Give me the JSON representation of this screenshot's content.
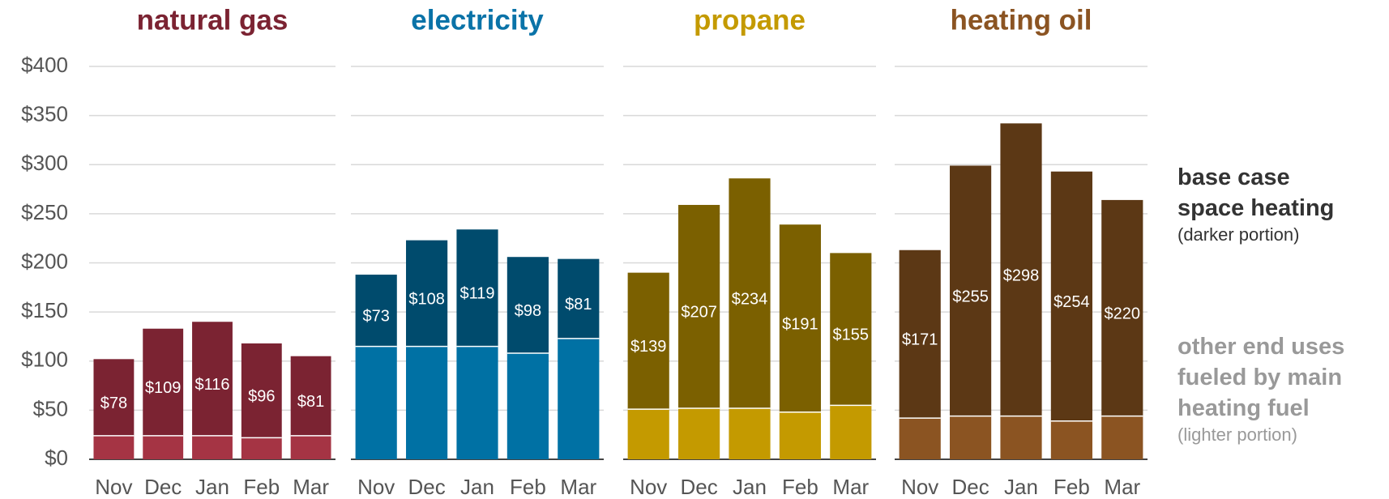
{
  "chart_data": {
    "type": "bar",
    "stacked": true,
    "grid": true,
    "ylim": [
      0,
      400
    ],
    "yticks": [
      {
        "value": 0,
        "label": "$0"
      },
      {
        "value": 50,
        "label": "$50"
      },
      {
        "value": 100,
        "label": "$100"
      },
      {
        "value": 150,
        "label": "$150"
      },
      {
        "value": 200,
        "label": "$200"
      },
      {
        "value": 250,
        "label": "$250"
      },
      {
        "value": 300,
        "label": "$300"
      },
      {
        "value": 350,
        "label": "$350"
      },
      {
        "value": 400,
        "label": "$400"
      }
    ],
    "legend": [
      {
        "name": "base case space heating",
        "note": "(darker portion)",
        "color": "#333333"
      },
      {
        "name": "other end uses fueled by main heating fuel",
        "note": "(lighter portion)",
        "color": "#999999"
      }
    ],
    "panels": [
      {
        "title": "natural gas",
        "title_color": "#7b2332",
        "categories": [
          "Nov",
          "Dec",
          "Jan",
          "Feb",
          "Mar"
        ],
        "series": [
          {
            "color": "#a53444",
            "values": [
              24,
              24,
              24,
              22,
              24
            ]
          },
          {
            "color": "#7b2332",
            "values": [
              78,
              109,
              116,
              96,
              81
            ],
            "value_labels": [
              "$78",
              "$109",
              "$116",
              "$96",
              "$81"
            ]
          }
        ]
      },
      {
        "title": "electricity",
        "title_color": "#0a73a8",
        "categories": [
          "Nov",
          "Dec",
          "Jan",
          "Feb",
          "Mar"
        ],
        "series": [
          {
            "color": "#0071a4",
            "values": [
              115,
              115,
              115,
              108,
              123
            ]
          },
          {
            "color": "#004b6d",
            "values": [
              73,
              108,
              119,
              98,
              81
            ],
            "value_labels": [
              "$73",
              "$108",
              "$119",
              "$98",
              "$81"
            ]
          }
        ]
      },
      {
        "title": "propane",
        "title_color": "#c49a00",
        "categories": [
          "Nov",
          "Dec",
          "Jan",
          "Feb",
          "Mar"
        ],
        "series": [
          {
            "color": "#c49a00",
            "values": [
              51,
              52,
              52,
              48,
              55
            ]
          },
          {
            "color": "#7b6000",
            "values": [
              139,
              207,
              234,
              191,
              155
            ],
            "value_labels": [
              "$139",
              "$207",
              "$234",
              "$191",
              "$155"
            ]
          }
        ]
      },
      {
        "title": "heating oil",
        "title_color": "#8b5422",
        "categories": [
          "Nov",
          "Dec",
          "Jan",
          "Feb",
          "Mar"
        ],
        "series": [
          {
            "color": "#8b5422",
            "values": [
              42,
              44,
              44,
              39,
              44
            ]
          },
          {
            "color": "#5c3815",
            "values": [
              171,
              255,
              298,
              254,
              220
            ],
            "value_labels": [
              "$171",
              "$255",
              "$298",
              "$254",
              "$220"
            ]
          }
        ]
      }
    ]
  }
}
